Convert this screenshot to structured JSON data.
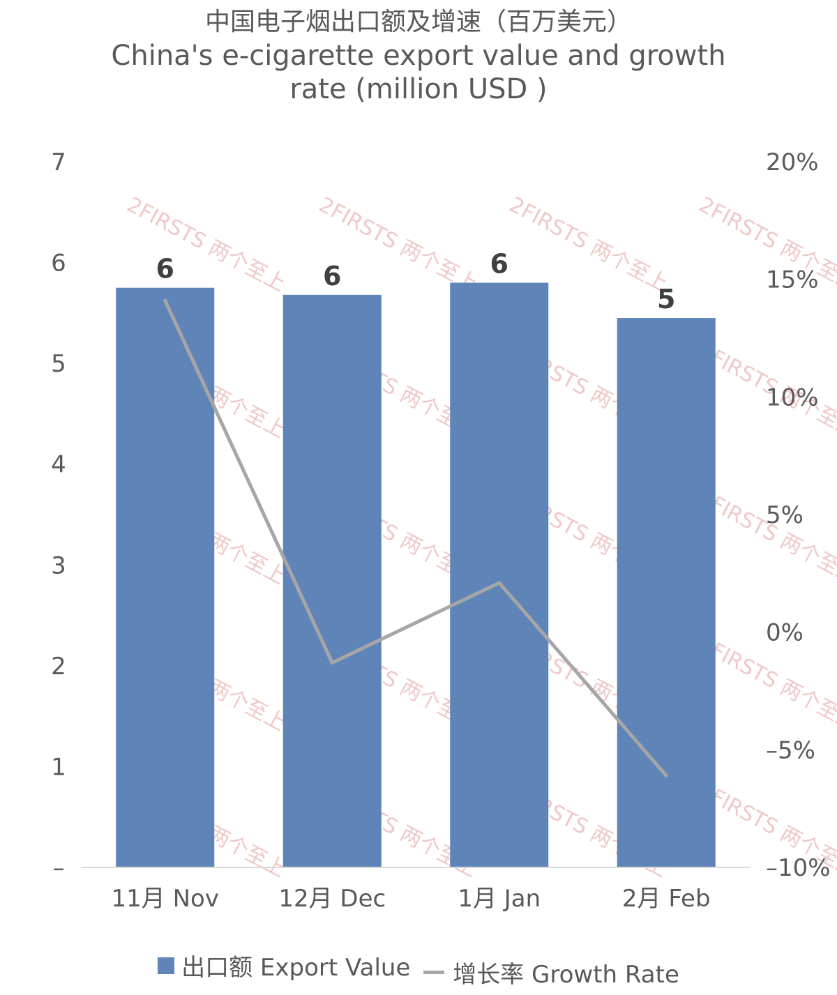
{
  "title": {
    "zh": "中国电子烟出口额及增速（百万美元）",
    "en": "China's e-cigarette export value and growth rate (million USD )"
  },
  "chart_data": {
    "type": "bar",
    "categories": [
      "11月 Nov",
      "12月 Dec",
      "1月 Jan",
      "2月 Feb"
    ],
    "series": [
      {
        "name": "出口额 Export Value",
        "type": "bar",
        "axis": "left",
        "color": "#5e84b8",
        "values": [
          5.75,
          5.68,
          5.8,
          5.45
        ],
        "data_labels": [
          "6",
          "6",
          "6",
          "5"
        ]
      },
      {
        "name": "增长率 Growth Rate",
        "type": "line",
        "axis": "right",
        "color": "#a6a6a6",
        "values": [
          0.141,
          -0.013,
          0.021,
          -0.061
        ]
      }
    ],
    "y_left": {
      "ylim": [
        0,
        7
      ],
      "ticks": [
        0,
        1,
        2,
        3,
        4,
        5,
        6,
        7
      ],
      "tick_labels": [
        "–",
        "1",
        "2",
        "3",
        "4",
        "5",
        "6",
        "7"
      ]
    },
    "y_right": {
      "ylim": [
        -0.1,
        0.2
      ],
      "ticks": [
        -0.1,
        -0.05,
        0,
        0.05,
        0.1,
        0.15,
        0.2
      ],
      "tick_labels": [
        "–10%",
        "–5%",
        "0%",
        "5%",
        "10%",
        "15%",
        "20%"
      ]
    },
    "grid": false,
    "legend_position": "bottom"
  },
  "watermark": {
    "text": "2FIRSTS 两个至上"
  }
}
